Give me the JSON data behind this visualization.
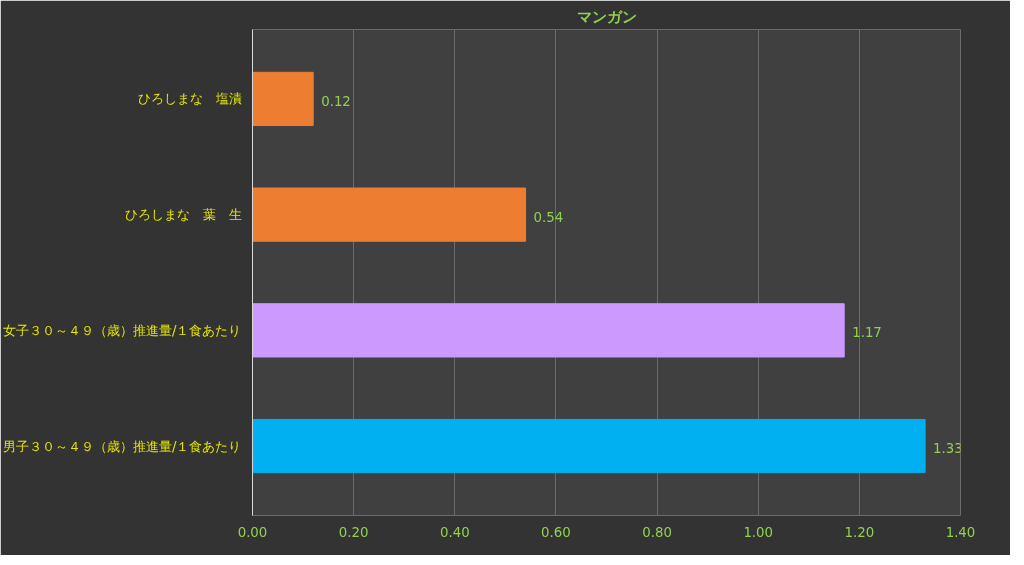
{
  "chart_data": {
    "type": "bar",
    "orientation": "horizontal",
    "title": "マンガン",
    "categories": [
      "ひろしまな　塩漬",
      "ひろしまな　葉　生",
      "女子３０～４９（歳）推進量/１食あたり",
      "男子３０～４９（歳）推進量/１食あたり"
    ],
    "values": [
      0.12,
      0.54,
      1.17,
      1.33
    ],
    "colors": [
      "#ed7d31",
      "#ed7d31",
      "#cc99ff",
      "#00b0f0"
    ],
    "xlim": [
      0,
      1.4
    ],
    "xticks": [
      {
        "value": 0,
        "label": "0.00"
      },
      {
        "value": 0.2,
        "label": "0.20"
      },
      {
        "value": 0.4,
        "label": "0.40"
      },
      {
        "value": 0.6,
        "label": "0.60"
      },
      {
        "value": 0.8,
        "label": "0.80"
      },
      {
        "value": 1.0,
        "label": "1.00"
      },
      {
        "value": 1.2,
        "label": "1.20"
      },
      {
        "value": 1.4,
        "label": "1.40"
      }
    ],
    "grid": "x",
    "data_labels": true
  }
}
